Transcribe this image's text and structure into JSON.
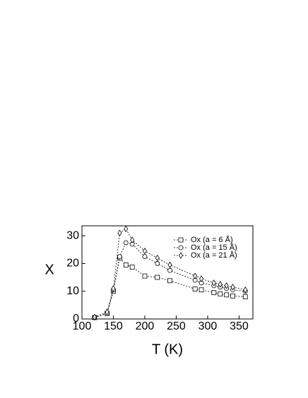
{
  "chart_data": {
    "type": "line",
    "x_label": "T (K)",
    "y_label": "X",
    "x": [
      120,
      140,
      150,
      160,
      170,
      180,
      200,
      220,
      240,
      280,
      290,
      310,
      320,
      330,
      340,
      360
    ],
    "series": [
      {
        "name": "Ox (a = 6 Å)",
        "color": "#000000",
        "marker": "square",
        "values": [
          0.5,
          2,
          10,
          22,
          19.5,
          18.7,
          15.5,
          15,
          13.8,
          10.8,
          10.5,
          9.5,
          9,
          8.7,
          8.3,
          8
        ]
      },
      {
        "name": "Ox (a = 15 Å)",
        "color": "#000000",
        "marker": "circle",
        "values": [
          0.5,
          2,
          10.5,
          22.5,
          27.5,
          27,
          22.5,
          20,
          17.5,
          14,
          13,
          12,
          11.5,
          11,
          10.5,
          10
        ]
      },
      {
        "name": "Ox (a = 21 Å)",
        "color": "#000000",
        "marker": "diamond",
        "values": [
          0.7,
          2.5,
          11,
          31,
          32.5,
          28.5,
          24.5,
          22,
          19.5,
          15.5,
          14.5,
          13,
          12.5,
          12,
          11.5,
          10.5
        ]
      }
    ],
    "xlim": [
      100,
      372
    ],
    "ylim": [
      0,
      33.6
    ],
    "xticks": [
      100,
      150,
      200,
      250,
      300,
      350
    ],
    "yticks": [
      0,
      10,
      20,
      30
    ],
    "legend": "upper right"
  }
}
